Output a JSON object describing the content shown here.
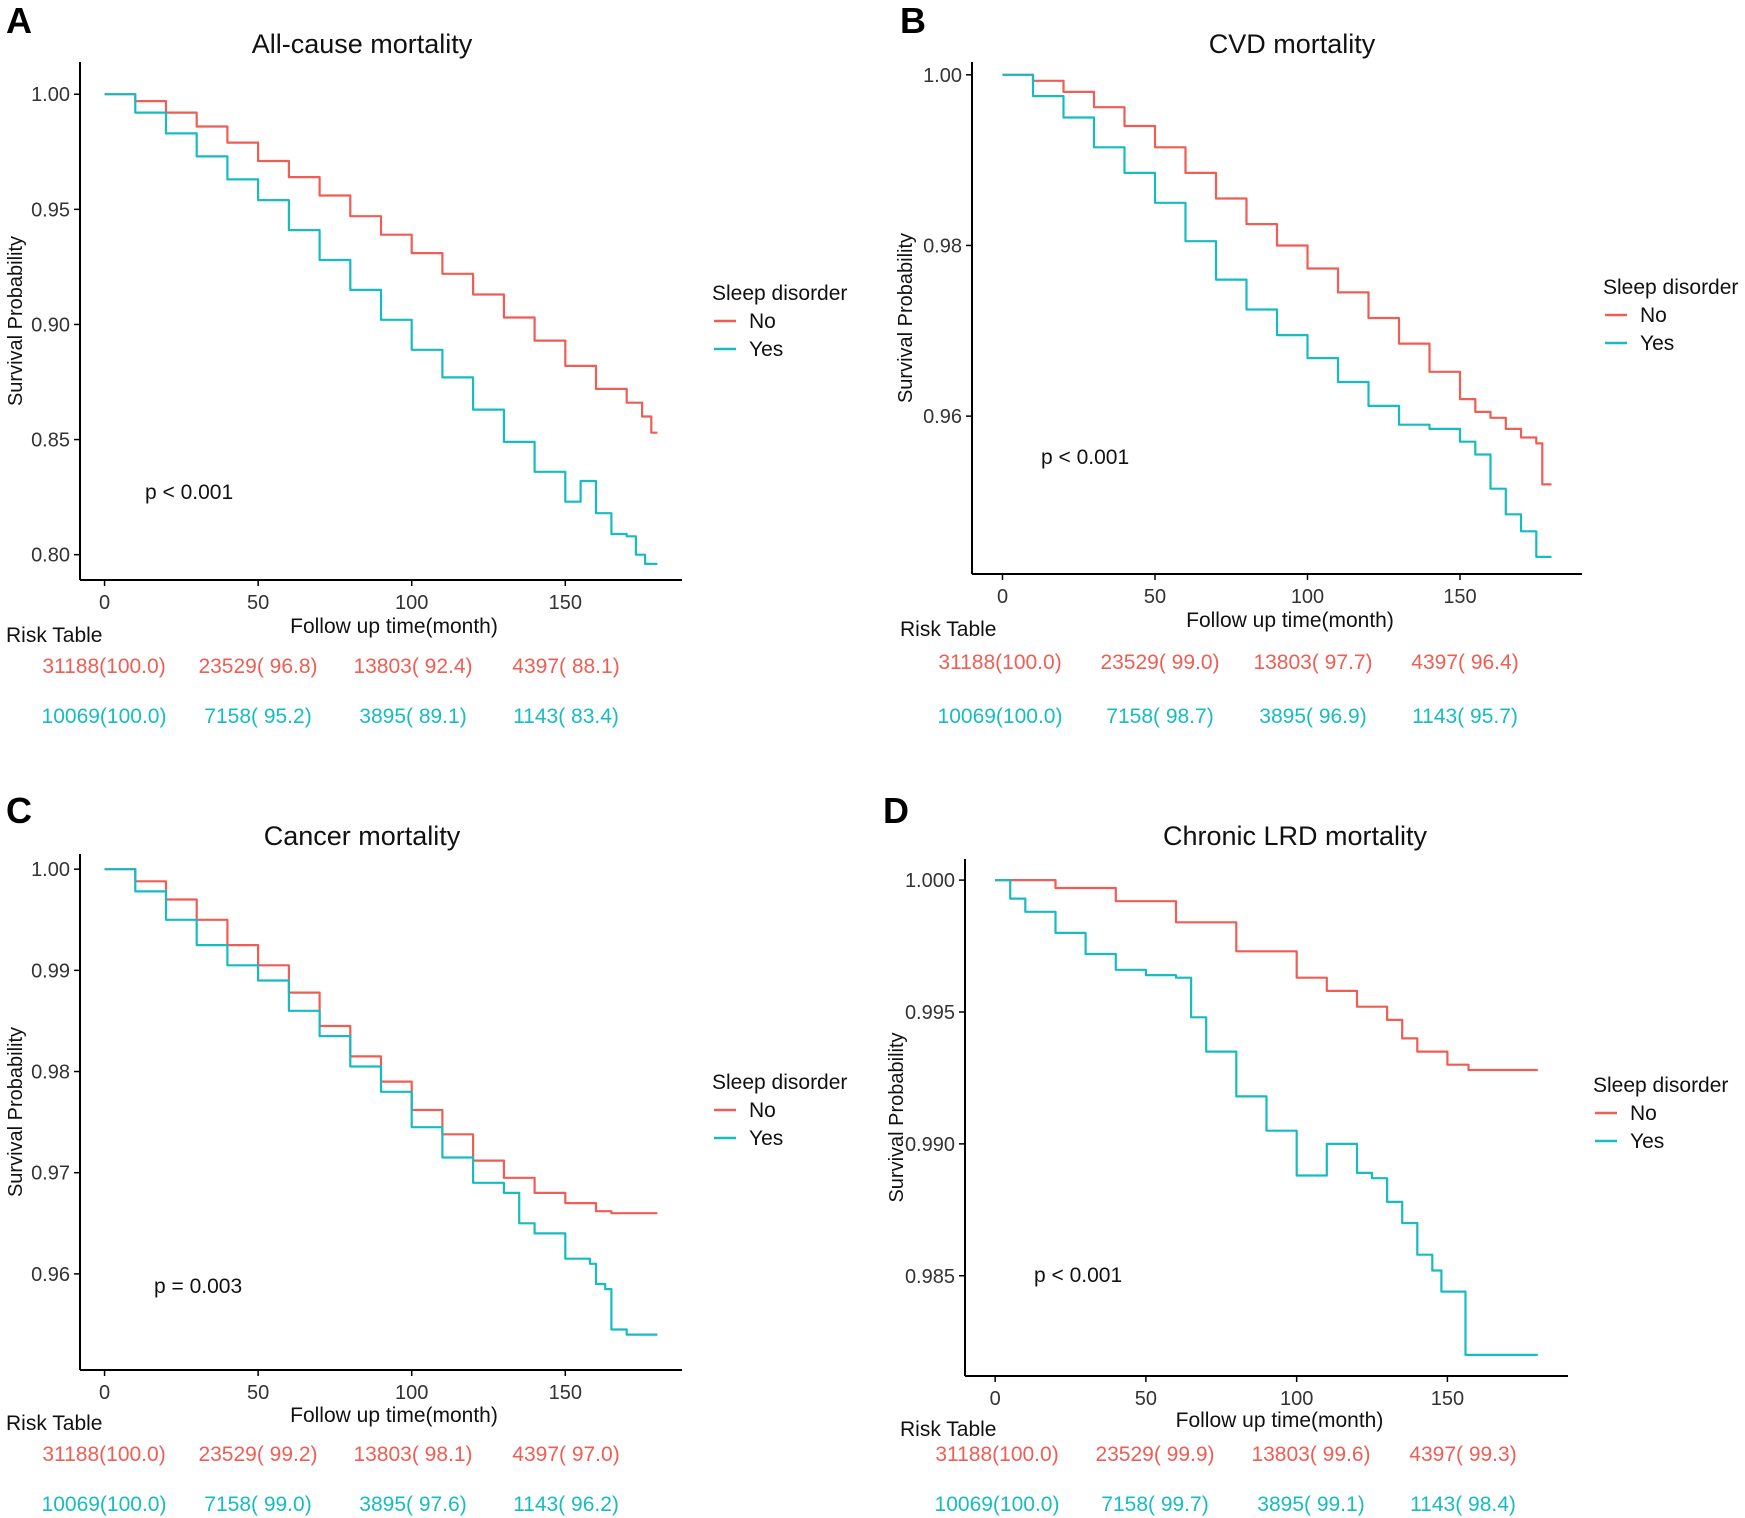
{
  "colors": {
    "No": "#ee5e55",
    "Yes": "#17bcc1",
    "axis": "#000000",
    "text": "#111111"
  },
  "chart_data": [
    {
      "type": "line",
      "panel_label": "A",
      "title": "All-cause mortality",
      "xlabel": "Follow up time(month)",
      "ylabel": "Survival Probability",
      "xlim": [
        -8,
        188
      ],
      "ylim": [
        0.789,
        1.014
      ],
      "xticks": [
        0,
        50,
        100,
        150
      ],
      "yticks": [
        0.8,
        0.85,
        0.9,
        0.95,
        1.0
      ],
      "ytick_labels": [
        "0.80",
        "0.85",
        "0.90",
        "0.95",
        "1.00"
      ],
      "legend_title": "Sleep disorder",
      "p_value": "p < 0.001",
      "series": [
        {
          "name": "No",
          "color": "No",
          "x": [
            0,
            10,
            20,
            30,
            40,
            50,
            60,
            70,
            80,
            90,
            100,
            110,
            120,
            130,
            140,
            150,
            160,
            170,
            175,
            178,
            180
          ],
          "y": [
            1.0,
            0.997,
            0.992,
            0.986,
            0.979,
            0.971,
            0.964,
            0.956,
            0.947,
            0.939,
            0.931,
            0.922,
            0.913,
            0.903,
            0.893,
            0.882,
            0.872,
            0.866,
            0.86,
            0.853,
            0.853
          ]
        },
        {
          "name": "Yes",
          "color": "Yes",
          "x": [
            0,
            10,
            20,
            30,
            40,
            50,
            60,
            70,
            80,
            90,
            100,
            110,
            120,
            130,
            140,
            150,
            155,
            160,
            165,
            170,
            173,
            176,
            180
          ],
          "y": [
            1.0,
            0.992,
            0.983,
            0.973,
            0.963,
            0.954,
            0.941,
            0.928,
            0.915,
            0.902,
            0.889,
            0.877,
            0.863,
            0.849,
            0.836,
            0.823,
            0.832,
            0.818,
            0.809,
            0.808,
            0.8,
            0.796,
            0.796
          ]
        }
      ],
      "risk_table": {
        "label": "Risk Table",
        "No": [
          "31188(100.0)",
          "23529( 96.8)",
          "13803( 92.4)",
          "4397( 88.1)"
        ],
        "Yes": [
          "10069(100.0)",
          "7158( 95.2)",
          "3895( 89.1)",
          "1143( 83.4)"
        ]
      }
    },
    {
      "type": "line",
      "panel_label": "B",
      "title": "CVD mortality",
      "xlabel": "Follow up time(month)",
      "ylabel": "Survival Probability",
      "xlim": [
        -10,
        190
      ],
      "ylim": [
        0.9415,
        1.0015
      ],
      "xticks": [
        0,
        50,
        100,
        150
      ],
      "yticks": [
        0.96,
        0.98,
        1.0
      ],
      "ytick_labels": [
        "0.96",
        "0.98",
        "1.00"
      ],
      "legend_title": "Sleep disorder",
      "p_value": "p < 0.001",
      "series": [
        {
          "name": "No",
          "color": "No",
          "x": [
            0,
            10,
            20,
            30,
            40,
            50,
            60,
            70,
            80,
            90,
            100,
            110,
            120,
            130,
            140,
            150,
            155,
            160,
            165,
            170,
            175,
            177,
            180
          ],
          "y": [
            1.0,
            0.9993,
            0.998,
            0.9962,
            0.994,
            0.9915,
            0.9885,
            0.9855,
            0.9825,
            0.98,
            0.9773,
            0.9745,
            0.9715,
            0.9685,
            0.9652,
            0.962,
            0.9605,
            0.9598,
            0.9585,
            0.9575,
            0.9568,
            0.952,
            0.952
          ]
        },
        {
          "name": "Yes",
          "color": "Yes",
          "x": [
            0,
            10,
            20,
            30,
            40,
            50,
            60,
            70,
            80,
            90,
            100,
            110,
            120,
            130,
            140,
            150,
            155,
            160,
            165,
            170,
            175,
            180
          ],
          "y": [
            1.0,
            0.9975,
            0.995,
            0.9915,
            0.9885,
            0.985,
            0.9805,
            0.976,
            0.9725,
            0.9695,
            0.9668,
            0.964,
            0.9612,
            0.959,
            0.9585,
            0.957,
            0.9555,
            0.9515,
            0.9485,
            0.9465,
            0.9435,
            0.9435
          ]
        }
      ],
      "risk_table": {
        "label": "Risk Table",
        "No": [
          "31188(100.0)",
          "23529( 99.0)",
          "13803( 97.7)",
          "4397( 96.4)"
        ],
        "Yes": [
          "10069(100.0)",
          "7158( 98.7)",
          "3895( 96.9)",
          "1143( 95.7)"
        ]
      }
    },
    {
      "type": "line",
      "panel_label": "C",
      "title": "Cancer mortality",
      "xlabel": "Follow up time(month)",
      "ylabel": "Survival Probability",
      "xlim": [
        -8,
        188
      ],
      "ylim": [
        0.9505,
        1.0015
      ],
      "xticks": [
        0,
        50,
        100,
        150
      ],
      "yticks": [
        0.96,
        0.97,
        0.98,
        0.99,
        1.0
      ],
      "ytick_labels": [
        "0.96",
        "0.97",
        "0.98",
        "0.99",
        "1.00"
      ],
      "legend_title": "Sleep disorder",
      "p_value": "p = 0.003",
      "series": [
        {
          "name": "No",
          "color": "No",
          "x": [
            0,
            10,
            20,
            30,
            40,
            50,
            60,
            70,
            80,
            90,
            100,
            110,
            120,
            130,
            140,
            150,
            160,
            165,
            170,
            180
          ],
          "y": [
            1.0,
            0.9988,
            0.997,
            0.995,
            0.9925,
            0.9905,
            0.9878,
            0.9845,
            0.9815,
            0.979,
            0.9762,
            0.9738,
            0.9712,
            0.9695,
            0.968,
            0.967,
            0.9662,
            0.966,
            0.966,
            0.966
          ]
        },
        {
          "name": "Yes",
          "color": "Yes",
          "x": [
            0,
            10,
            20,
            30,
            40,
            50,
            60,
            70,
            80,
            90,
            100,
            110,
            120,
            125,
            130,
            135,
            140,
            150,
            158,
            160,
            163,
            165,
            170,
            180
          ],
          "y": [
            1.0,
            0.9978,
            0.995,
            0.9925,
            0.9905,
            0.989,
            0.986,
            0.9835,
            0.9805,
            0.978,
            0.9745,
            0.9715,
            0.969,
            0.969,
            0.968,
            0.965,
            0.964,
            0.9615,
            0.961,
            0.959,
            0.9585,
            0.9545,
            0.954,
            0.954
          ]
        }
      ],
      "risk_table": {
        "label": "Risk Table",
        "No": [
          "31188(100.0)",
          "23529( 99.2)",
          "13803( 98.1)",
          "4397( 97.0)"
        ],
        "Yes": [
          "10069(100.0)",
          "7158( 99.0)",
          "3895( 97.6)",
          "1143( 96.2)"
        ]
      }
    },
    {
      "type": "line",
      "panel_label": "D",
      "title": "Chronic LRD mortality",
      "xlabel": "Follow up time(month)",
      "ylabel": "Survival Probability",
      "xlim": [
        -10,
        190
      ],
      "ylim": [
        0.9812,
        1.0008
      ],
      "xticks": [
        0,
        50,
        100,
        150
      ],
      "yticks": [
        0.985,
        0.99,
        0.995,
        1.0
      ],
      "ytick_labels": [
        "0.985",
        "0.990",
        "0.995",
        "1.000"
      ],
      "legend_title": "Sleep disorder",
      "p_value": "p < 0.001",
      "series": [
        {
          "name": "No",
          "color": "No",
          "x": [
            0,
            20,
            40,
            60,
            80,
            100,
            110,
            120,
            130,
            135,
            140,
            150,
            155,
            157,
            160,
            170,
            180
          ],
          "y": [
            1.0,
            0.9997,
            0.9992,
            0.9984,
            0.9973,
            0.9963,
            0.9958,
            0.9952,
            0.9947,
            0.994,
            0.9935,
            0.993,
            0.993,
            0.9928,
            0.9928,
            0.9928,
            0.9928
          ]
        },
        {
          "name": "Yes",
          "color": "Yes",
          "x": [
            0,
            5,
            10,
            20,
            30,
            40,
            50,
            60,
            65,
            70,
            80,
            90,
            100,
            110,
            120,
            125,
            130,
            135,
            140,
            145,
            148,
            155,
            156,
            170,
            180
          ],
          "y": [
            1.0,
            0.9993,
            0.9988,
            0.998,
            0.9972,
            0.9966,
            0.9964,
            0.9963,
            0.9948,
            0.9935,
            0.9918,
            0.9905,
            0.9888,
            0.99,
            0.9889,
            0.9887,
            0.9878,
            0.987,
            0.9858,
            0.9852,
            0.9844,
            0.9844,
            0.982,
            0.982,
            0.982
          ]
        }
      ],
      "risk_table": {
        "label": "Risk Table",
        "No": [
          "31188(100.0)",
          "23529( 99.9)",
          "13803( 99.6)",
          "4397( 99.3)"
        ],
        "Yes": [
          "10069(100.0)",
          "7158( 99.7)",
          "3895( 99.1)",
          "1143( 98.4)"
        ]
      }
    }
  ]
}
